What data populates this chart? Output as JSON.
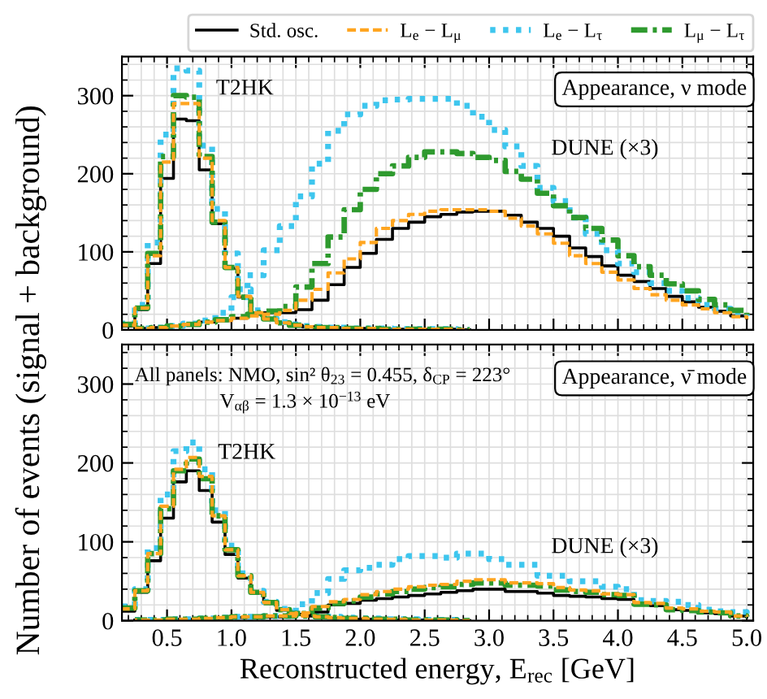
{
  "chart_data": [
    {
      "type": "step",
      "ylabel": "Number of events (signal + background)",
      "xlim": [
        0.15,
        5.05
      ],
      "ylim": [
        0,
        350
      ],
      "xticks": [
        {
          "value": 0.5,
          "label": null
        },
        {
          "value": 1,
          "label": null
        },
        {
          "value": 1.5,
          "label": null
        },
        {
          "value": 2,
          "label": null
        },
        {
          "value": 2.5,
          "label": null
        },
        {
          "value": 3,
          "label": null
        },
        {
          "value": 3.5,
          "label": null
        },
        {
          "value": 4,
          "label": null
        },
        {
          "value": 4.5,
          "label": null
        },
        {
          "value": 5,
          "label": null
        }
      ],
      "yticks": [
        0,
        100,
        200,
        300
      ],
      "tick_labels": "y",
      "grid": true,
      "legend": "top",
      "annotations": [
        "Appearance, ν mode",
        "T2HK",
        "DUNE (×3)"
      ],
      "series": [
        {
          "name": "Std. osc.",
          "color": "#000000",
          "line_style": "solid",
          "x": [
            0.15,
            0.25,
            0.35,
            0.45,
            0.55,
            0.65,
            0.75,
            0.85,
            0.95,
            1.05,
            1.15,
            1.25,
            1.35,
            1.45,
            1.55,
            1.65,
            1.75,
            1.85,
            1.95,
            2.05,
            2.15,
            2.25,
            2.35,
            2.45,
            2.55,
            2.65,
            2.75,
            2.85
          ],
          "values": [
            5,
            26,
            85,
            194,
            270,
            268,
            205,
            136,
            79,
            42,
            22,
            14,
            9,
            6,
            4,
            3,
            3,
            2,
            2,
            2,
            1,
            1,
            1,
            1,
            1,
            1,
            0,
            0
          ]
        },
        {
          "name": "L$_{e}$ − L$_{μ}$",
          "color": "#ffa520",
          "line_style": "dashed",
          "x": [
            0.15,
            0.25,
            0.35,
            0.45,
            0.55,
            0.65,
            0.75,
            0.85,
            0.95,
            1.05,
            1.15,
            1.25,
            1.35,
            1.45,
            1.55,
            1.65,
            1.75,
            1.85,
            1.95,
            2.05,
            2.15,
            2.25,
            2.35,
            2.45,
            2.55,
            2.65,
            2.75,
            2.85
          ],
          "values": [
            6,
            28,
            95,
            215,
            290,
            290,
            220,
            140,
            80,
            43,
            22,
            14,
            9,
            6,
            4,
            3,
            3,
            2,
            2,
            2,
            1,
            1,
            1,
            1,
            1,
            1,
            0,
            0
          ]
        },
        {
          "name": "L$_{e}$ − L$_{τ}$",
          "color": "#3ec6ee",
          "line_style": "dotted",
          "x": [
            0.15,
            0.25,
            0.35,
            0.45,
            0.55,
            0.65,
            0.75,
            0.85,
            0.95,
            1.05,
            1.15,
            1.25,
            1.35,
            1.45,
            1.55,
            1.65,
            1.75,
            1.85,
            1.95,
            2.05,
            2.15,
            2.25,
            2.35,
            2.45,
            2.55,
            2.65,
            2.75,
            2.85
          ],
          "values": [
            8,
            32,
            112,
            250,
            335,
            332,
            236,
            155,
            98,
            52,
            25,
            15,
            10,
            7,
            5,
            4,
            3,
            3,
            2,
            2,
            2,
            1,
            1,
            1,
            1,
            1,
            0,
            0
          ]
        },
        {
          "name": "L$_{μ}$ − L$_{τ}$",
          "color": "#2e9a2e",
          "line_style": "dashdot",
          "x": [
            0.15,
            0.25,
            0.35,
            0.45,
            0.55,
            0.65,
            0.75,
            0.85,
            0.95,
            1.05,
            1.15,
            1.25,
            1.35,
            1.45,
            1.55,
            1.65,
            1.75,
            1.85,
            1.95,
            2.05,
            2.15,
            2.25,
            2.35,
            2.45,
            2.55,
            2.65,
            2.75,
            2.85
          ],
          "values": [
            7,
            28,
            98,
            222,
            300,
            298,
            222,
            138,
            80,
            42,
            22,
            14,
            9,
            6,
            4,
            3,
            3,
            2,
            2,
            2,
            1,
            1,
            1,
            1,
            1,
            1,
            0,
            0
          ]
        },
        {
          "color": "#000000",
          "line_style": "solid",
          "x": [
            0.25,
            0.375,
            0.5,
            0.625,
            0.75,
            0.875,
            1.0,
            1.125,
            1.25,
            1.375,
            1.5,
            1.625,
            1.75,
            1.875,
            2.0,
            2.125,
            2.25,
            2.375,
            2.5,
            2.625,
            2.75,
            2.875,
            3.0,
            3.125,
            3.25,
            3.375,
            3.5,
            3.625,
            3.75,
            3.875,
            4.0,
            4.125,
            4.25,
            4.375,
            4.5,
            4.625,
            4.75,
            4.875,
            5.0
          ],
          "values": [
            2,
            3,
            5,
            7,
            10,
            12,
            15,
            20,
            22,
            22,
            26,
            38,
            58,
            80,
            98,
            116,
            130,
            138,
            145,
            148,
            151,
            152,
            152,
            147,
            138,
            130,
            120,
            105,
            94,
            82,
            70,
            62,
            53,
            43,
            36,
            29,
            24,
            18,
            15
          ]
        },
        {
          "color": "#ffa520",
          "line_style": "dashed",
          "x": [
            0.25,
            0.375,
            0.5,
            0.625,
            0.75,
            0.875,
            1.0,
            1.125,
            1.25,
            1.375,
            1.5,
            1.625,
            1.75,
            1.875,
            2.0,
            2.125,
            2.25,
            2.375,
            2.5,
            2.625,
            2.75,
            2.875,
            3.0,
            3.125,
            3.25,
            3.375,
            3.5,
            3.625,
            3.75,
            3.875,
            4.0,
            4.125,
            4.25,
            4.375,
            4.5,
            4.625,
            4.75,
            4.875,
            5.0
          ],
          "values": [
            2,
            3,
            5,
            7,
            10,
            12,
            15,
            18,
            20,
            25,
            38,
            52,
            73,
            91,
            112,
            130,
            140,
            148,
            152,
            154,
            154,
            154,
            152,
            143,
            133,
            123,
            111,
            95,
            85,
            74,
            64,
            53,
            45,
            38,
            32,
            27,
            22,
            17,
            14
          ]
        },
        {
          "color": "#3ec6ee",
          "line_style": "dotted",
          "x": [
            0.25,
            0.375,
            0.5,
            0.625,
            0.75,
            0.875,
            1.0,
            1.125,
            1.25,
            1.375,
            1.5,
            1.625,
            1.75,
            1.875,
            2.0,
            2.125,
            2.25,
            2.375,
            2.5,
            2.625,
            2.75,
            2.875,
            3.0,
            3.125,
            3.25,
            3.375,
            3.5,
            3.625,
            3.75,
            3.875,
            4.0,
            4.125,
            4.25,
            4.375,
            4.5,
            4.625,
            4.75,
            4.875,
            5.0
          ],
          "values": [
            2,
            3,
            5,
            8,
            12,
            22,
            42,
            70,
            102,
            133,
            171,
            213,
            255,
            276,
            287,
            294,
            295,
            296,
            296,
            296,
            287,
            273,
            256,
            235,
            210,
            182,
            165,
            144,
            123,
            102,
            85,
            74,
            60,
            50,
            41,
            32,
            27,
            22,
            18
          ]
        },
        {
          "color": "#2e9a2e",
          "line_style": "dashdot",
          "x": [
            0.25,
            0.375,
            0.5,
            0.625,
            0.75,
            0.875,
            1.0,
            1.125,
            1.25,
            1.375,
            1.5,
            1.625,
            1.75,
            1.875,
            2.0,
            2.125,
            2.25,
            2.375,
            2.5,
            2.625,
            2.75,
            2.875,
            3.0,
            3.125,
            3.25,
            3.375,
            3.5,
            3.625,
            3.75,
            3.875,
            4.0,
            4.125,
            4.25,
            4.375,
            4.5,
            4.625,
            4.75,
            4.875,
            5.0
          ],
          "values": [
            2,
            3,
            5,
            7,
            10,
            13,
            17,
            20,
            24,
            30,
            55,
            85,
            119,
            154,
            180,
            200,
            210,
            221,
            228,
            228,
            226,
            221,
            217,
            203,
            193,
            175,
            159,
            144,
            130,
            115,
            95,
            81,
            70,
            59,
            50,
            39,
            32,
            25,
            20
          ]
        }
      ]
    },
    {
      "type": "step",
      "xlabel": "Reconstructed energy, E$_{rec}$ [GeV]",
      "xlim": [
        0.15,
        5.05
      ],
      "ylim": [
        0,
        350
      ],
      "xticks": [
        {
          "value": 0.5,
          "label": "0.5"
        },
        {
          "value": 1,
          "label": "1.0"
        },
        {
          "value": 1.5,
          "label": "1.5"
        },
        {
          "value": 2,
          "label": "2.0"
        },
        {
          "value": 2.5,
          "label": "2.5"
        },
        {
          "value": 3,
          "label": "3.0"
        },
        {
          "value": 3.5,
          "label": "3.5"
        },
        {
          "value": 4,
          "label": "4.0"
        },
        {
          "value": 4.5,
          "label": "4.5"
        },
        {
          "value": 5,
          "label": "5.0"
        }
      ],
      "yticks": [
        0,
        100,
        200,
        300
      ],
      "grid": true,
      "annotations": [
        "All panels: NMO, sin² θ$_{23}$ = 0.455, δ$_{CP}$ = 223°",
        "V$_{αβ}$ = 1.3 × 10$^{−13}$ eV",
        "Appearance, ν̄ mode",
        "T2HK",
        "DUNE (×3)"
      ],
      "series": [
        {
          "color": "#000000",
          "line_style": "solid",
          "x": [
            0.15,
            0.25,
            0.35,
            0.45,
            0.55,
            0.65,
            0.75,
            0.85,
            0.95,
            1.05,
            1.15,
            1.25,
            1.35,
            1.45,
            1.55,
            1.65,
            1.75,
            1.85,
            1.95,
            2.05,
            2.15,
            2.25,
            2.35,
            2.45,
            2.55,
            2.65,
            2.75,
            2.85
          ],
          "values": [
            12,
            36,
            76,
            130,
            176,
            190,
            165,
            125,
            84,
            54,
            35,
            22,
            13,
            8,
            6,
            4,
            3,
            3,
            2,
            2,
            2,
            1,
            1,
            1,
            1,
            1,
            0,
            0
          ]
        },
        {
          "color": "#ffa520",
          "line_style": "dashed",
          "x": [
            0.15,
            0.25,
            0.35,
            0.45,
            0.55,
            0.65,
            0.75,
            0.85,
            0.95,
            1.05,
            1.15,
            1.25,
            1.35,
            1.45,
            1.55,
            1.65,
            1.75,
            1.85,
            1.95,
            2.05,
            2.15,
            2.25,
            2.35,
            2.45,
            2.55,
            2.65,
            2.75,
            2.85
          ],
          "values": [
            15,
            38,
            85,
            145,
            192,
            207,
            183,
            133,
            90,
            57,
            36,
            23,
            14,
            9,
            6,
            5,
            4,
            3,
            3,
            2,
            2,
            2,
            1,
            1,
            1,
            1,
            0,
            0
          ]
        },
        {
          "color": "#3ec6ee",
          "line_style": "dotted",
          "x": [
            0.15,
            0.25,
            0.35,
            0.45,
            0.55,
            0.65,
            0.75,
            0.85,
            0.95,
            1.05,
            1.15,
            1.25,
            1.35,
            1.45,
            1.55,
            1.65,
            1.75,
            1.85,
            1.95,
            2.05,
            2.15,
            2.25,
            2.35,
            2.45,
            2.55,
            2.65,
            2.75,
            2.85
          ],
          "values": [
            18,
            40,
            92,
            160,
            215,
            226,
            192,
            140,
            95,
            60,
            38,
            24,
            15,
            10,
            8,
            6,
            5,
            4,
            3,
            3,
            2,
            2,
            2,
            1,
            1,
            1,
            0,
            0
          ]
        },
        {
          "color": "#2e9a2e",
          "line_style": "dashdot",
          "x": [
            0.15,
            0.25,
            0.35,
            0.45,
            0.55,
            0.65,
            0.75,
            0.85,
            0.95,
            1.05,
            1.15,
            1.25,
            1.35,
            1.45,
            1.55,
            1.65,
            1.75,
            1.85,
            1.95,
            2.05,
            2.15,
            2.25,
            2.35,
            2.45,
            2.55,
            2.65,
            2.75,
            2.85
          ],
          "values": [
            16,
            38,
            85,
            142,
            190,
            205,
            180,
            133,
            90,
            57,
            36,
            23,
            14,
            9,
            6,
            5,
            4,
            3,
            3,
            2,
            2,
            2,
            1,
            1,
            1,
            1,
            0,
            0
          ]
        },
        {
          "color": "#000000",
          "line_style": "solid",
          "x": [
            0.25,
            0.375,
            0.5,
            0.625,
            0.75,
            0.875,
            1.0,
            1.125,
            1.25,
            1.375,
            1.5,
            1.625,
            1.75,
            1.875,
            2.0,
            2.125,
            2.25,
            2.375,
            2.5,
            2.625,
            2.75,
            2.875,
            3.0,
            3.125,
            3.25,
            3.375,
            3.5,
            3.625,
            3.75,
            3.875,
            4.0,
            4.125,
            4.25,
            4.375,
            4.5,
            4.625,
            4.75,
            4.875,
            5.0
          ],
          "values": [
            1,
            1,
            2,
            2,
            3,
            3,
            4,
            4,
            5,
            5,
            8,
            11,
            20,
            22,
            26,
            28,
            30,
            32,
            34,
            36,
            38,
            40,
            40,
            37,
            37,
            35,
            32,
            31,
            30,
            28,
            27,
            20,
            19,
            14,
            13,
            10,
            9,
            6,
            5
          ]
        },
        {
          "color": "#ffa520",
          "line_style": "dashed",
          "x": [
            0.25,
            0.375,
            0.5,
            0.625,
            0.75,
            0.875,
            1.0,
            1.125,
            1.25,
            1.375,
            1.5,
            1.625,
            1.75,
            1.875,
            2.0,
            2.125,
            2.25,
            2.375,
            2.5,
            2.625,
            2.75,
            2.875,
            3.0,
            3.125,
            3.25,
            3.375,
            3.5,
            3.625,
            3.75,
            3.875,
            4.0,
            4.125,
            4.25,
            4.375,
            4.5,
            4.625,
            4.75,
            4.875,
            5.0
          ],
          "values": [
            1,
            1,
            2,
            2,
            3,
            4,
            5,
            5,
            6,
            6,
            10,
            18,
            24,
            27,
            33,
            37,
            40,
            43,
            45,
            46,
            50,
            52,
            52,
            48,
            48,
            47,
            42,
            39,
            38,
            34,
            33,
            23,
            22,
            16,
            15,
            12,
            11,
            6,
            5
          ]
        },
        {
          "color": "#3ec6ee",
          "line_style": "dotted",
          "x": [
            0.25,
            0.375,
            0.5,
            0.625,
            0.75,
            0.875,
            1.0,
            1.125,
            1.25,
            1.375,
            1.5,
            1.625,
            1.75,
            1.875,
            2.0,
            2.125,
            2.25,
            2.375,
            2.5,
            2.625,
            2.75,
            2.875,
            3.0,
            3.125,
            3.25,
            3.375,
            3.5,
            3.625,
            3.75,
            3.875,
            4.0,
            4.125,
            4.25,
            4.375,
            4.5,
            4.625,
            4.75,
            4.875,
            5.0
          ],
          "values": [
            1,
            1,
            2,
            2,
            3,
            4,
            5,
            5,
            6,
            6,
            21,
            35,
            53,
            64,
            67,
            71,
            78,
            82,
            82,
            80,
            85,
            85,
            78,
            71,
            71,
            57,
            57,
            50,
            50,
            43,
            40,
            26,
            25,
            24,
            20,
            14,
            12,
            11,
            9
          ]
        },
        {
          "color": "#2e9a2e",
          "line_style": "dashdot",
          "x": [
            0.25,
            0.375,
            0.5,
            0.625,
            0.75,
            0.875,
            1.0,
            1.125,
            1.25,
            1.375,
            1.5,
            1.625,
            1.75,
            1.875,
            2.0,
            2.125,
            2.25,
            2.375,
            2.5,
            2.625,
            2.75,
            2.875,
            3.0,
            3.125,
            3.25,
            3.375,
            3.5,
            3.625,
            3.75,
            3.875,
            4.0,
            4.125,
            4.25,
            4.375,
            4.5,
            4.625,
            4.75,
            4.875,
            5.0
          ],
          "values": [
            1,
            1,
            2,
            2,
            3,
            4,
            5,
            5,
            6,
            6,
            9,
            16,
            22,
            25,
            30,
            34,
            37,
            40,
            42,
            43,
            46,
            48,
            48,
            45,
            45,
            44,
            39,
            37,
            36,
            33,
            32,
            21,
            20,
            14,
            13,
            11,
            10,
            6,
            5
          ]
        }
      ]
    }
  ]
}
